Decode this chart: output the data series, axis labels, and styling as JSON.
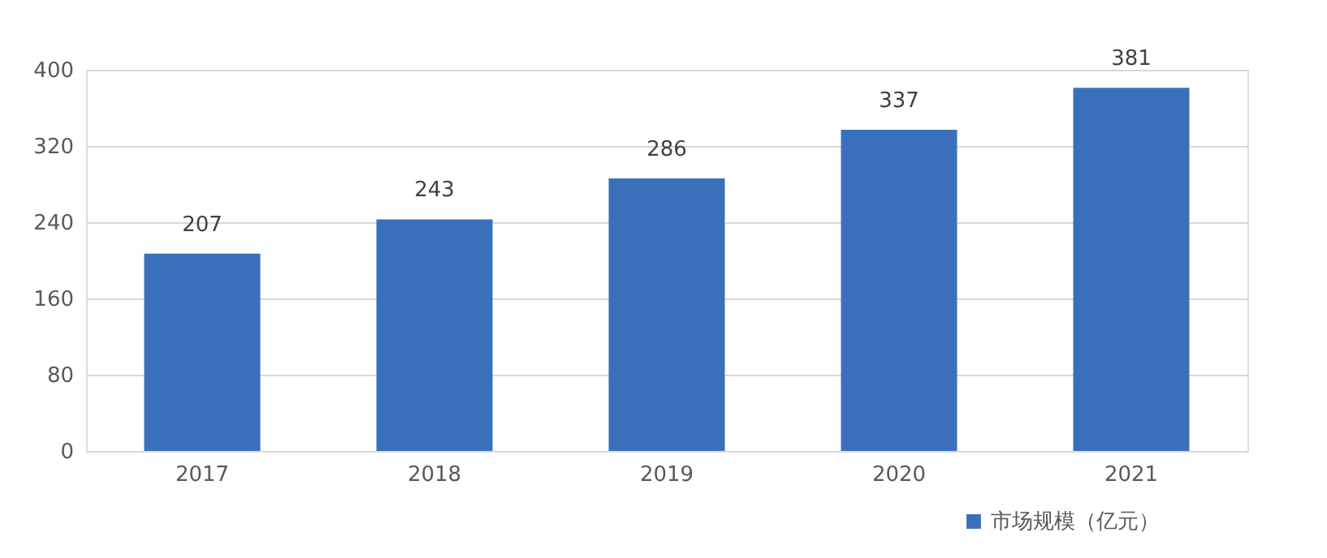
{
  "chart_data": {
    "type": "bar",
    "categories": [
      "2017",
      "2018",
      "2019",
      "2020",
      "2021"
    ],
    "series": [
      {
        "name": "市场规模（亿元）",
        "color": "#3a70bb",
        "values": [
          207,
          243,
          286,
          337,
          381
        ]
      }
    ],
    "ylim": [
      0,
      400
    ],
    "yticks": [
      0,
      80,
      160,
      240,
      320,
      400
    ],
    "grid": "y",
    "legend": "bottom right",
    "data_labels": true
  }
}
